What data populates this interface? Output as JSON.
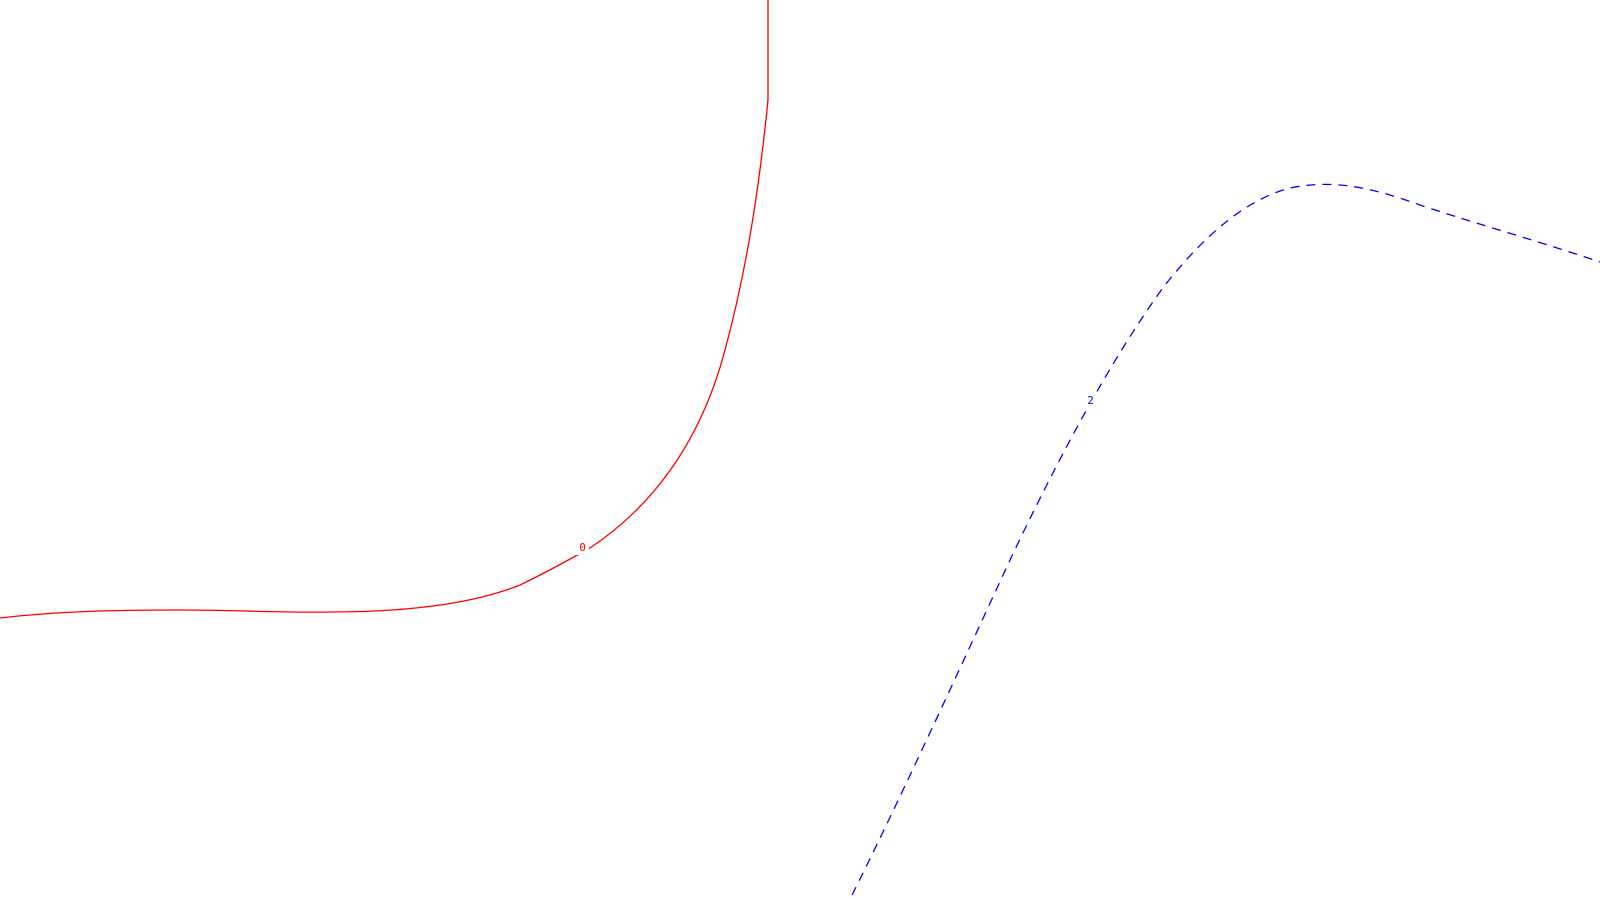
{
  "contours": [
    {
      "label": "0",
      "color": "#ff0000",
      "style": "solid"
    },
    {
      "label": "2",
      "color": "#0000ff",
      "style": "dashed"
    }
  ],
  "background": "#ffffff"
}
